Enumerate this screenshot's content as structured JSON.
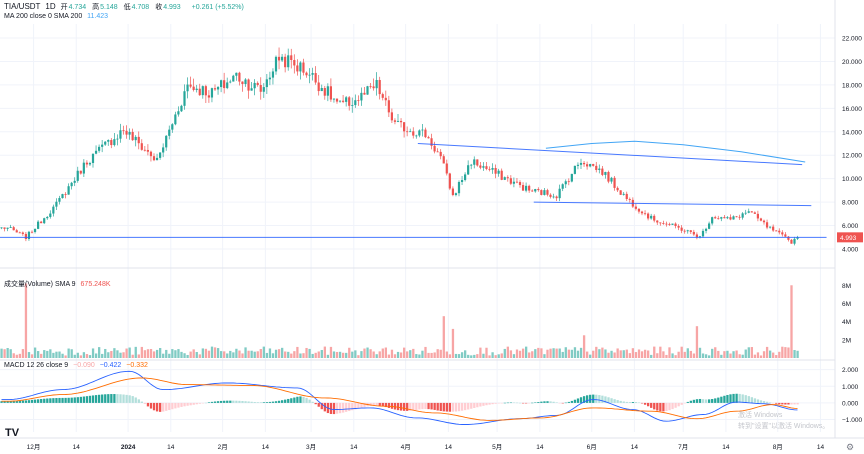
{
  "header": {
    "symbol": "TIA/USDT",
    "interval": "1D",
    "ohlc": [
      {
        "label": "开",
        "value": "4.734"
      },
      {
        "label": "高",
        "value": "5.148"
      },
      {
        "label": "低",
        "value": "4.708"
      },
      {
        "label": "收",
        "value": "4.993"
      }
    ],
    "change": "+0.261 (+5.52%)"
  },
  "ma_legend": {
    "label": "MA 200 close 0 SMA 200",
    "value": "11.423"
  },
  "volume_legend": {
    "label": "成交量(Volume) SMA 9",
    "value": "675.248K"
  },
  "macd_legend": {
    "label": "MACD 12 26 close 9",
    "hist": "−0.090",
    "macd": "−0.422",
    "signal": "−0.332"
  },
  "watermark": {
    "line1": "激活 Windows",
    "line2": "转到\"设置\"以激活 Windows。"
  },
  "colors": {
    "up": "#26a69a",
    "down": "#ef5350",
    "ma": "#42a5f5",
    "trend": "#2962ff",
    "macd": "#2962ff",
    "signal": "#ff6d00",
    "price_tag": "#ef5350",
    "grid": "#f0f3fa"
  },
  "chart_data": [
    {
      "type": "candlestick",
      "title": "TIA/USDT 1D",
      "x_ticks": [
        "12月",
        "14",
        "2024",
        "14",
        "2月",
        "14",
        "3月",
        "14",
        "4月",
        "14",
        "5月",
        "14",
        "6月",
        "14",
        "7月",
        "14",
        "8月",
        "14"
      ],
      "y_ticks": [
        "4.000",
        "6.000",
        "8.000",
        "10.000",
        "12.000",
        "14.000",
        "16.000",
        "18.000",
        "20.000",
        "22.000"
      ],
      "ylim": [
        3.4,
        23.2
      ],
      "last_price_label": "4.993",
      "last_price": 4.993,
      "key_points": [
        {
          "date": "2023-11-22",
          "close": 5.8
        },
        {
          "date": "2023-11-28",
          "close": 5.0
        },
        {
          "date": "2023-12-08",
          "close": 7.8
        },
        {
          "date": "2023-12-18",
          "close": 11.5
        },
        {
          "date": "2023-12-30",
          "close": 14.2
        },
        {
          "date": "2024-01-10",
          "close": 11.5
        },
        {
          "date": "2024-01-20",
          "close": 18.0
        },
        {
          "date": "2024-01-28",
          "close": 17.3
        },
        {
          "date": "2024-02-05",
          "close": 18.8
        },
        {
          "date": "2024-02-13",
          "close": 17.5
        },
        {
          "date": "2024-02-19",
          "close": 20.4
        },
        {
          "date": "2024-02-28",
          "close": 19.2
        },
        {
          "date": "2024-03-10",
          "close": 16.2
        },
        {
          "date": "2024-03-16",
          "close": 16.8
        },
        {
          "date": "2024-03-22",
          "close": 17.9
        },
        {
          "date": "2024-03-28",
          "close": 14.6
        },
        {
          "date": "2024-04-07",
          "close": 13.8
        },
        {
          "date": "2024-04-12",
          "close": 11.8
        },
        {
          "date": "2024-04-16",
          "close": 8.5
        },
        {
          "date": "2024-04-22",
          "close": 11.5
        },
        {
          "date": "2024-05-02",
          "close": 10.2
        },
        {
          "date": "2024-05-11",
          "close": 9.0
        },
        {
          "date": "2024-05-20",
          "close": 8.6
        },
        {
          "date": "2024-05-28",
          "close": 11.6
        },
        {
          "date": "2024-06-04",
          "close": 10.6
        },
        {
          "date": "2024-06-12",
          "close": 8.3
        },
        {
          "date": "2024-06-20",
          "close": 6.6
        },
        {
          "date": "2024-07-01",
          "close": 5.6
        },
        {
          "date": "2024-07-06",
          "close": 5.0
        },
        {
          "date": "2024-07-10",
          "close": 6.8
        },
        {
          "date": "2024-07-16",
          "close": 6.5
        },
        {
          "date": "2024-07-22",
          "close": 7.2
        },
        {
          "date": "2024-07-28",
          "close": 5.9
        },
        {
          "date": "2024-08-05",
          "close": 4.6
        },
        {
          "date": "2024-08-07",
          "close": 4.993
        }
      ],
      "ma200": [
        {
          "date": "2024-05-17",
          "value": 12.6
        },
        {
          "date": "2024-06-01",
          "value": 13.0
        },
        {
          "date": "2024-06-15",
          "value": 13.2
        },
        {
          "date": "2024-07-01",
          "value": 12.9
        },
        {
          "date": "2024-07-20",
          "value": 12.3
        },
        {
          "date": "2024-08-10",
          "value": 11.423
        }
      ],
      "trendlines": [
        {
          "from": {
            "date": "2024-04-05",
            "value": 13.0
          },
          "to": {
            "date": "2024-08-09",
            "value": 11.2
          }
        },
        {
          "from": {
            "date": "2024-05-13",
            "value": 8.0
          },
          "to": {
            "date": "2024-08-12",
            "value": 7.7
          }
        },
        {
          "from": {
            "date": "2023-11-20",
            "value": 4.993
          },
          "to": {
            "date": "2024-08-17",
            "value": 4.993
          }
        }
      ]
    },
    {
      "type": "bar",
      "title": "成交量(Volume) SMA 9",
      "y_ticks": [
        "2M",
        "4M",
        "6M",
        "8M"
      ],
      "ylim": [
        0,
        8.8
      ],
      "base_million": 0.7,
      "spikes": [
        {
          "date": "2023-11-28",
          "value": 8.2
        },
        {
          "date": "2024-04-13",
          "value": 4.6
        },
        {
          "date": "2024-04-16",
          "value": 3.2
        },
        {
          "date": "2024-05-29",
          "value": 2.5
        },
        {
          "date": "2024-07-05",
          "value": 3.5
        },
        {
          "date": "2024-08-05",
          "value": 8.0
        }
      ]
    },
    {
      "type": "macd",
      "title": "MACD 12 26 close 9",
      "y_ticks": [
        "2.000",
        "1.000",
        "0.000",
        "−1.000"
      ],
      "ylim": [
        -1.75,
        2.4
      ],
      "macd_points": [
        {
          "date": "2023-11-22",
          "value": 0.2
        },
        {
          "date": "2023-12-10",
          "value": 0.8
        },
        {
          "date": "2024-01-01",
          "value": 1.9
        },
        {
          "date": "2024-01-12",
          "value": 0.8
        },
        {
          "date": "2024-02-02",
          "value": 1.2
        },
        {
          "date": "2024-02-25",
          "value": 0.9
        },
        {
          "date": "2024-03-08",
          "value": -0.4
        },
        {
          "date": "2024-03-20",
          "value": -0.3
        },
        {
          "date": "2024-04-04",
          "value": -0.9
        },
        {
          "date": "2024-04-20",
          "value": -1.3
        },
        {
          "date": "2024-05-08",
          "value": -0.95
        },
        {
          "date": "2024-05-20",
          "value": -0.75
        },
        {
          "date": "2024-06-01",
          "value": 0.2
        },
        {
          "date": "2024-06-14",
          "value": -0.4
        },
        {
          "date": "2024-06-25",
          "value": -1.1
        },
        {
          "date": "2024-07-07",
          "value": -0.7
        },
        {
          "date": "2024-07-18",
          "value": 0.05
        },
        {
          "date": "2024-07-27",
          "value": -0.05
        },
        {
          "date": "2024-08-07",
          "value": -0.422
        }
      ],
      "signal_points": [
        {
          "date": "2023-11-22",
          "value": 0.1
        },
        {
          "date": "2023-12-10",
          "value": 0.5
        },
        {
          "date": "2024-01-05",
          "value": 1.5
        },
        {
          "date": "2024-01-20",
          "value": 1.1
        },
        {
          "date": "2024-02-10",
          "value": 1.05
        },
        {
          "date": "2024-03-05",
          "value": 0.3
        },
        {
          "date": "2024-03-25",
          "value": -0.2
        },
        {
          "date": "2024-04-10",
          "value": -0.6
        },
        {
          "date": "2024-04-28",
          "value": -1.05
        },
        {
          "date": "2024-05-15",
          "value": -0.9
        },
        {
          "date": "2024-06-01",
          "value": -0.3
        },
        {
          "date": "2024-06-20",
          "value": -0.5
        },
        {
          "date": "2024-07-05",
          "value": -0.95
        },
        {
          "date": "2024-07-18",
          "value": -0.5
        },
        {
          "date": "2024-07-30",
          "value": -0.1
        },
        {
          "date": "2024-08-07",
          "value": -0.332
        }
      ]
    }
  ]
}
